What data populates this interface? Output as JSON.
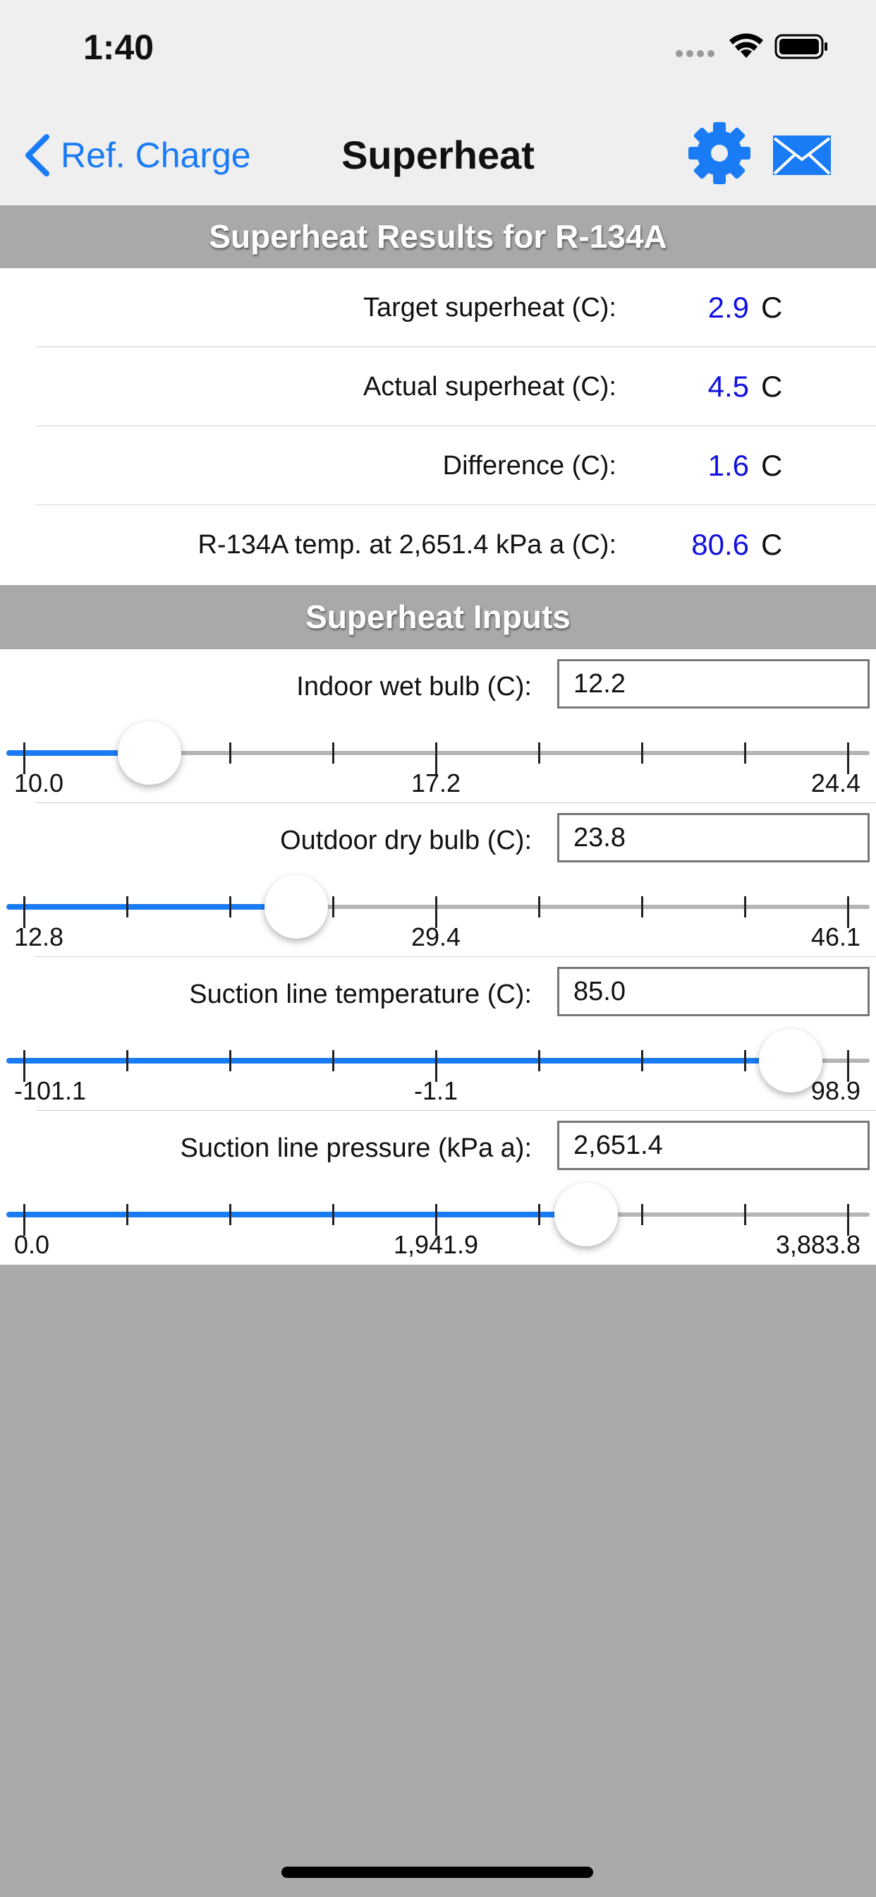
{
  "status_bar": {
    "time": "1:40"
  },
  "nav_bar": {
    "back_label": "Ref. Charge",
    "title": "Superheat"
  },
  "results": {
    "header": "Superheat Results for R-134A",
    "rows": [
      {
        "label": "Target superheat (C):",
        "value": "2.9",
        "unit": "C"
      },
      {
        "label": "Actual superheat (C):",
        "value": "4.5",
        "unit": "C"
      },
      {
        "label": "Difference (C):",
        "value": "1.6",
        "unit": "C"
      },
      {
        "label": "R-134A temp. at 2,651.4 kPa a (C):",
        "value": "80.6",
        "unit": "C"
      }
    ]
  },
  "inputs": {
    "header": "Superheat Inputs",
    "rows": [
      {
        "label": "Indoor wet bulb (C):",
        "value": "12.2",
        "min": "10.0",
        "mid": "17.2",
        "max": "24.4"
      },
      {
        "label": "Outdoor dry bulb (C):",
        "value": "23.8",
        "min": "12.8",
        "mid": "29.4",
        "max": "46.1"
      },
      {
        "label": "Suction line temperature (C):",
        "value": "85.0",
        "min": "-101.1",
        "mid": "-1.1",
        "max": "98.9"
      },
      {
        "label": "Suction line pressure (kPa a):",
        "value": "2,651.4",
        "min": "0.0",
        "mid": "1,941.9",
        "max": "3,883.8"
      }
    ]
  }
}
